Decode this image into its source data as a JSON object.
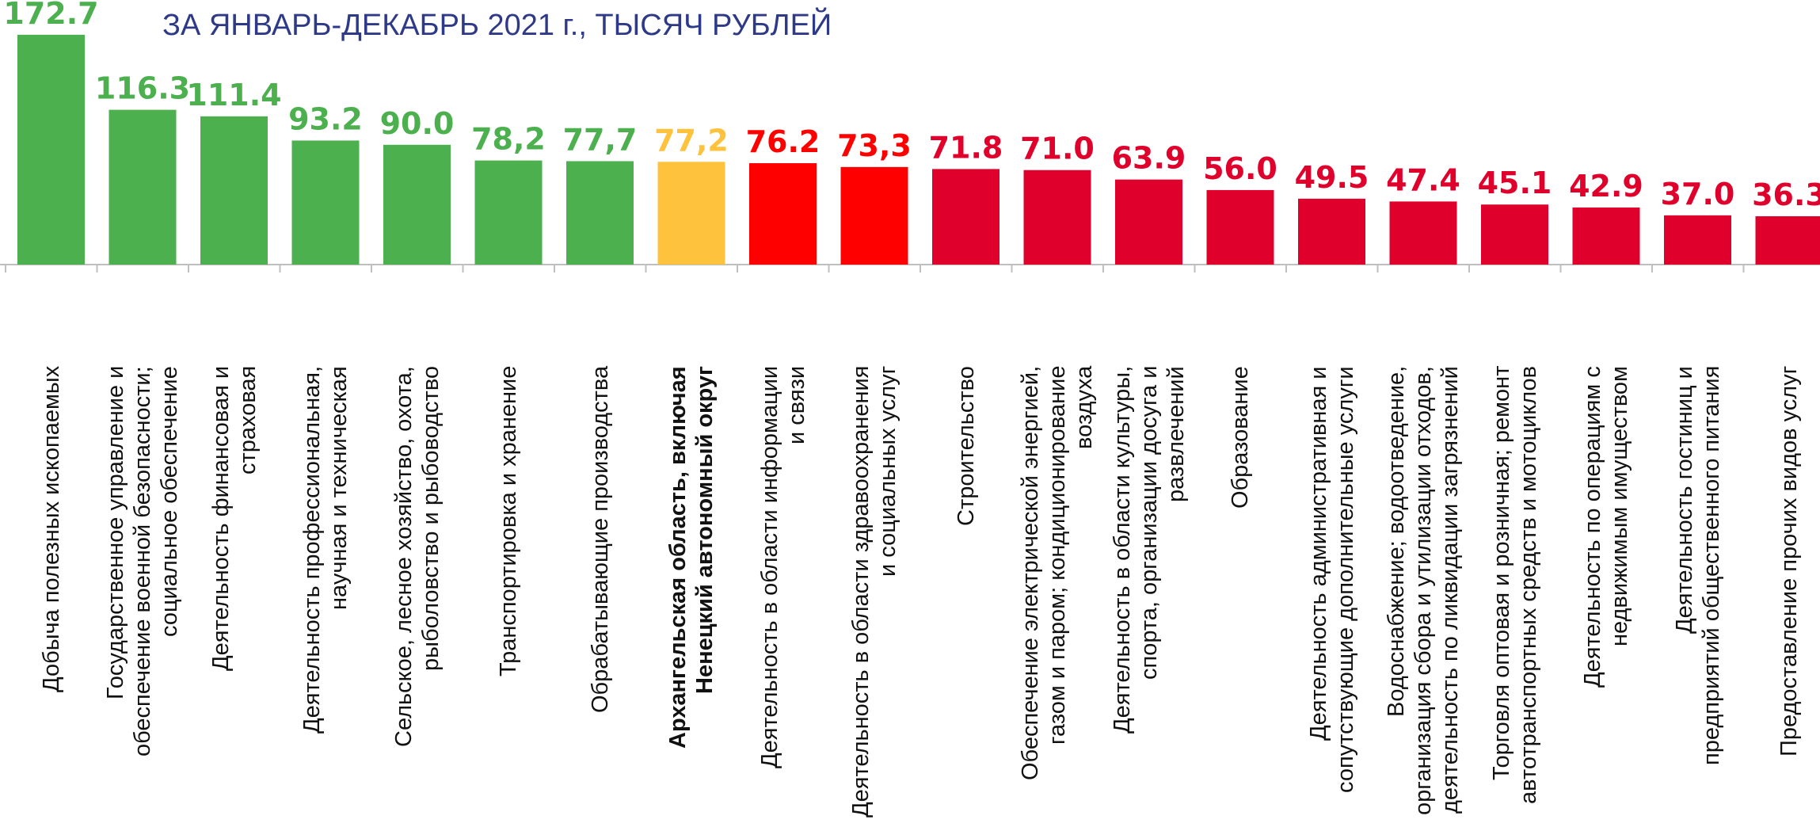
{
  "chart_data": {
    "type": "bar",
    "title": "ЗА ЯНВАРЬ-ДЕКАБРЬ 2021 г., ТЫСЯЧ РУБЛЕЙ",
    "categories": [
      "Добыча полезных ископаемых",
      "Государственное управление и\nобеспечение военной безопасности;\nсоциальное обеспечение",
      "Деятельность финансовая и\nстраховая",
      "Деятельность профессиональная,\nнаучная и техническая",
      "Сельское, лесное хозяйство, охота,\nрыболовство и рыбоводство",
      "Транспортировка и хранение",
      "Обрабатывающие производства",
      "Архангельская область, включая\nНенецкий автономный округ",
      "Деятельность в области информации\nи связи",
      "Деятельность в области здравоохранения\nи социальных услуг",
      "Строительство",
      "Обеспечение электрической энергией,\nгазом и паром; кондиционирование\nвоздуха",
      "Деятельность в области культуры,\nспорта, организации досуга и\nразвлечений",
      "Образование",
      "Деятельность административная и\nсопутствующие дополнительные услуги",
      "Водоснабжение; водоотведение,\nорганизация сбора и утилизации отходов,\nдеятельность по ликвидации загрязнений",
      "Торговля оптовая и розничная; ремонт\nавтотранспортных средств и мотоциклов",
      "Деятельность по операциям с\nнедвижимым имуществом",
      "Деятельность гостиниц и\nпредприятий общественного питания",
      "Предоставление прочих видов услуг"
    ],
    "values": [
      172.7,
      116.3,
      111.4,
      93.2,
      90.0,
      78.2,
      77.7,
      77.2,
      76.2,
      73.3,
      71.8,
      71.0,
      63.9,
      56.0,
      49.5,
      47.4,
      45.1,
      42.9,
      37.0,
      36.3
    ],
    "value_labels": [
      "172.7",
      "116.3",
      "111.4",
      "93.2",
      "90.0",
      "78,2",
      "77,7",
      "77,2",
      "76.2",
      "73,3",
      "71.8",
      "71.0",
      "63.9",
      "56.0",
      "49.5",
      "47.4",
      "45.1",
      "42.9",
      "37.0",
      "36.3"
    ],
    "colors": [
      "#4cb04f",
      "#4cb04f",
      "#4cb04f",
      "#4cb04f",
      "#4cb04f",
      "#4cb04f",
      "#4cb04f",
      "#ffc23d",
      "#ff0000",
      "#ff0000",
      "#e0002c",
      "#e0002c",
      "#e0002c",
      "#e0002c",
      "#e0002c",
      "#e0002c",
      "#e0002c",
      "#e0002c",
      "#e0002c",
      "#e0002c"
    ],
    "ylim": [
      0,
      175
    ]
  }
}
